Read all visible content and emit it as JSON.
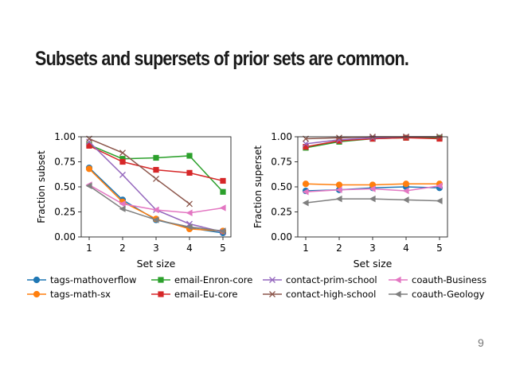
{
  "slide": {
    "title": "Subsets and supersets of prior sets are common.",
    "page_number": "9"
  },
  "chart_data": [
    {
      "type": "line",
      "xlabel": "Set size",
      "ylabel": "Fraction subset",
      "x": [
        1,
        2,
        3,
        4,
        5
      ],
      "xlim": [
        1,
        5
      ],
      "ylim": [
        0,
        1
      ],
      "xticks": [
        "1",
        "2",
        "3",
        "4",
        "5"
      ],
      "yticks": [
        "0.00",
        "0.25",
        "0.50",
        "0.75",
        "1.00"
      ],
      "series": [
        {
          "name": "tags-mathoverflow",
          "color": "#1f77b4",
          "marker": "circle",
          "values": [
            0.69,
            0.37,
            0.17,
            0.09,
            0.04
          ]
        },
        {
          "name": "tags-math-sx",
          "color": "#ff7f0e",
          "marker": "circle",
          "values": [
            0.68,
            0.35,
            0.18,
            0.08,
            0.06
          ]
        },
        {
          "name": "email-Enron-core",
          "color": "#2ca02c",
          "marker": "square",
          "values": [
            0.92,
            0.78,
            0.79,
            0.81,
            0.45
          ]
        },
        {
          "name": "email-Eu-core",
          "color": "#d62728",
          "marker": "square",
          "values": [
            0.91,
            0.75,
            0.67,
            0.64,
            0.56
          ]
        },
        {
          "name": "contact-prim-school",
          "color": "#9467bd",
          "marker": "x",
          "values": [
            0.95,
            0.62,
            0.27,
            0.13,
            0.05
          ]
        },
        {
          "name": "contact-high-school",
          "color": "#8c564b",
          "marker": "x",
          "values": [
            0.98,
            0.84,
            0.58,
            0.33,
            null
          ]
        },
        {
          "name": "coauth-Business",
          "color": "#e377c2",
          "marker": "triangle-left",
          "values": [
            0.52,
            0.33,
            0.27,
            0.24,
            0.29
          ]
        },
        {
          "name": "coauth-Geology",
          "color": "#7f7f7f",
          "marker": "triangle-left",
          "values": [
            0.51,
            0.28,
            0.17,
            0.1,
            0.06
          ]
        }
      ]
    },
    {
      "type": "line",
      "xlabel": "Set size",
      "ylabel": "Fraction superset",
      "x": [
        1,
        2,
        3,
        4,
        5
      ],
      "xlim": [
        1,
        5
      ],
      "ylim": [
        0,
        1
      ],
      "xticks": [
        "1",
        "2",
        "3",
        "4",
        "5"
      ],
      "yticks": [
        "0.00",
        "0.25",
        "0.50",
        "0.75",
        "1.00"
      ],
      "series": [
        {
          "name": "tags-mathoverflow",
          "color": "#1f77b4",
          "marker": "circle",
          "values": [
            0.46,
            0.47,
            0.49,
            0.5,
            0.49
          ]
        },
        {
          "name": "tags-math-sx",
          "color": "#ff7f0e",
          "marker": "circle",
          "values": [
            0.53,
            0.52,
            0.52,
            0.53,
            0.53
          ]
        },
        {
          "name": "email-Enron-core",
          "color": "#2ca02c",
          "marker": "square",
          "values": [
            0.89,
            0.95,
            0.98,
            0.99,
            0.99
          ]
        },
        {
          "name": "email-Eu-core",
          "color": "#d62728",
          "marker": "square",
          "values": [
            0.9,
            0.96,
            0.98,
            0.99,
            0.98
          ]
        },
        {
          "name": "contact-prim-school",
          "color": "#9467bd",
          "marker": "x",
          "values": [
            0.93,
            0.97,
            0.99,
            1.0,
            1.0
          ]
        },
        {
          "name": "contact-high-school",
          "color": "#8c564b",
          "marker": "x",
          "values": [
            0.98,
            0.99,
            1.0,
            1.0,
            1.0
          ]
        },
        {
          "name": "coauth-Business",
          "color": "#e377c2",
          "marker": "triangle-left",
          "values": [
            0.45,
            0.47,
            0.48,
            0.46,
            0.51
          ]
        },
        {
          "name": "coauth-Geology",
          "color": "#7f7f7f",
          "marker": "triangle-left",
          "values": [
            0.34,
            0.38,
            0.38,
            0.37,
            0.36
          ]
        }
      ]
    }
  ],
  "legend": {
    "placement": "bottom",
    "entries": [
      {
        "label": "tags-mathoverflow",
        "color": "#1f77b4",
        "marker": "circle"
      },
      {
        "label": "email-Enron-core",
        "color": "#2ca02c",
        "marker": "square"
      },
      {
        "label": "contact-prim-school",
        "color": "#9467bd",
        "marker": "x"
      },
      {
        "label": "coauth-Business",
        "color": "#e377c2",
        "marker": "triangle-left"
      },
      {
        "label": "tags-math-sx",
        "color": "#ff7f0e",
        "marker": "circle"
      },
      {
        "label": "email-Eu-core",
        "color": "#d62728",
        "marker": "square"
      },
      {
        "label": "contact-high-school",
        "color": "#8c564b",
        "marker": "x"
      },
      {
        "label": "coauth-Geology",
        "color": "#7f7f7f",
        "marker": "triangle-left"
      }
    ]
  }
}
